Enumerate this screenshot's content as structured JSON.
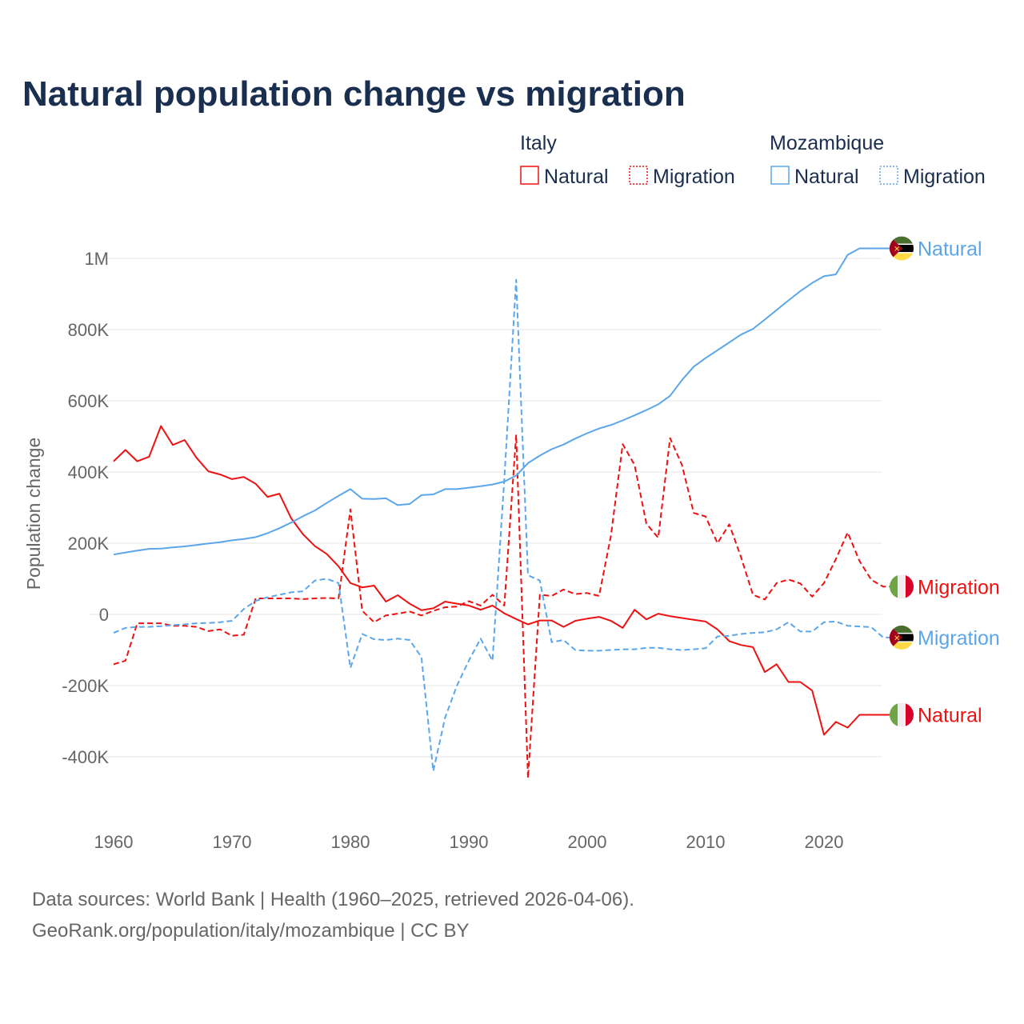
{
  "title": "Natural population change vs migration",
  "legend": {
    "groups": [
      {
        "country": "Italy",
        "items": [
          "Natural",
          "Migration"
        ]
      },
      {
        "country": "Mozambique",
        "items": [
          "Natural",
          "Migration"
        ]
      }
    ]
  },
  "colors": {
    "italy": "#ee1111",
    "mozambique": "#5ba6ea"
  },
  "footer": {
    "line1": "Data sources: World Bank | Health (1960–2025, retrieved 2026-04-06).",
    "line2": "GeoRank.org/population/italy/mozambique | CC BY"
  },
  "chart_data": {
    "type": "line",
    "title": "Natural population change vs migration",
    "xlabel": "",
    "ylabel": "Population change",
    "xlim": [
      1960,
      2025
    ],
    "ylim": [
      -500000,
      1050000
    ],
    "x_ticks": [
      1960,
      1970,
      1980,
      1990,
      2000,
      2010,
      2020
    ],
    "y_ticks": [
      {
        "v": -400000,
        "label": "-400K"
      },
      {
        "v": -200000,
        "label": "-200K"
      },
      {
        "v": 0,
        "label": "0"
      },
      {
        "v": 200000,
        "label": "200K"
      },
      {
        "v": 400000,
        "label": "400K"
      },
      {
        "v": 600000,
        "label": "600K"
      },
      {
        "v": 800000,
        "label": "800K"
      },
      {
        "v": 1000000,
        "label": "1M"
      }
    ],
    "grid": true,
    "legend_position": "top-right",
    "x_start": 1960,
    "units": "thousands",
    "series": [
      {
        "name": "Italy Natural",
        "country": "italy",
        "kind": "natural",
        "label": "Natural",
        "dashed": false,
        "values": [
          430,
          462,
          430,
          443,
          529,
          476,
          490,
          440,
          402,
          393,
          380,
          386,
          367,
          330,
          339,
          270,
          225,
          192,
          170,
          135,
          88,
          76,
          81,
          36,
          54,
          30,
          12,
          17,
          36,
          30,
          25,
          13,
          25,
          3,
          -13,
          -28,
          -17,
          -17,
          -35,
          -18,
          -12,
          -7,
          -18,
          -38,
          13,
          -14,
          2,
          -5,
          -10,
          -15,
          -20,
          -42,
          -75,
          -86,
          -92,
          -162,
          -140,
          -190,
          -190,
          -214,
          -338,
          -302,
          -318,
          -282,
          -282,
          -282
        ]
      },
      {
        "name": "Italy Migration",
        "country": "italy",
        "kind": "migration",
        "label": "Migration",
        "dashed": true,
        "values": [
          -140,
          -130,
          -25,
          -25,
          -25,
          -32,
          -32,
          -35,
          -47,
          -42,
          -60,
          -57,
          45,
          45,
          45,
          45,
          43,
          45,
          46,
          45,
          295,
          10,
          -22,
          -3,
          2,
          8,
          -3,
          10,
          20,
          22,
          37,
          25,
          55,
          25,
          505,
          -460,
          55,
          52,
          70,
          57,
          60,
          52,
          220,
          478,
          420,
          255,
          215,
          495,
          420,
          285,
          275,
          200,
          253,
          160,
          55,
          42,
          88,
          98,
          87,
          50,
          88,
          155,
          230,
          150,
          97,
          78
        ]
      },
      {
        "name": "Mozambique Natural",
        "country": "mozambique",
        "kind": "natural",
        "label": "Natural",
        "dashed": false,
        "values": [
          168,
          174,
          179,
          184,
          185,
          188,
          191,
          195,
          199,
          203,
          208,
          212,
          217,
          228,
          242,
          258,
          276,
          292,
          313,
          333,
          352,
          325,
          324,
          326,
          307,
          310,
          335,
          337,
          352,
          352,
          356,
          360,
          365,
          373,
          390,
          425,
          446,
          464,
          477,
          494,
          509,
          522,
          532,
          545,
          559,
          574,
          590,
          614,
          658,
          696,
          720,
          742,
          764,
          786,
          802,
          828,
          855,
          882,
          908,
          931,
          950,
          955,
          1010,
          1028,
          1028,
          1028
        ]
      },
      {
        "name": "Mozambique Migration",
        "country": "mozambique",
        "kind": "migration",
        "label": "Migration",
        "dashed": true,
        "values": [
          -52,
          -38,
          -35,
          -35,
          -33,
          -30,
          -28,
          -25,
          -24,
          -22,
          -18,
          15,
          38,
          48,
          55,
          62,
          65,
          95,
          100,
          88,
          -150,
          -55,
          -70,
          -72,
          -68,
          -72,
          -120,
          -440,
          -290,
          -200,
          -130,
          -68,
          -130,
          380,
          940,
          110,
          95,
          -78,
          -72,
          -100,
          -102,
          -102,
          -100,
          -98,
          -98,
          -94,
          -94,
          -98,
          -100,
          -98,
          -95,
          -62,
          -60,
          -55,
          -52,
          -50,
          -42,
          -22,
          -48,
          -48,
          -22,
          -20,
          -32,
          -34,
          -36,
          -65
        ]
      }
    ]
  }
}
